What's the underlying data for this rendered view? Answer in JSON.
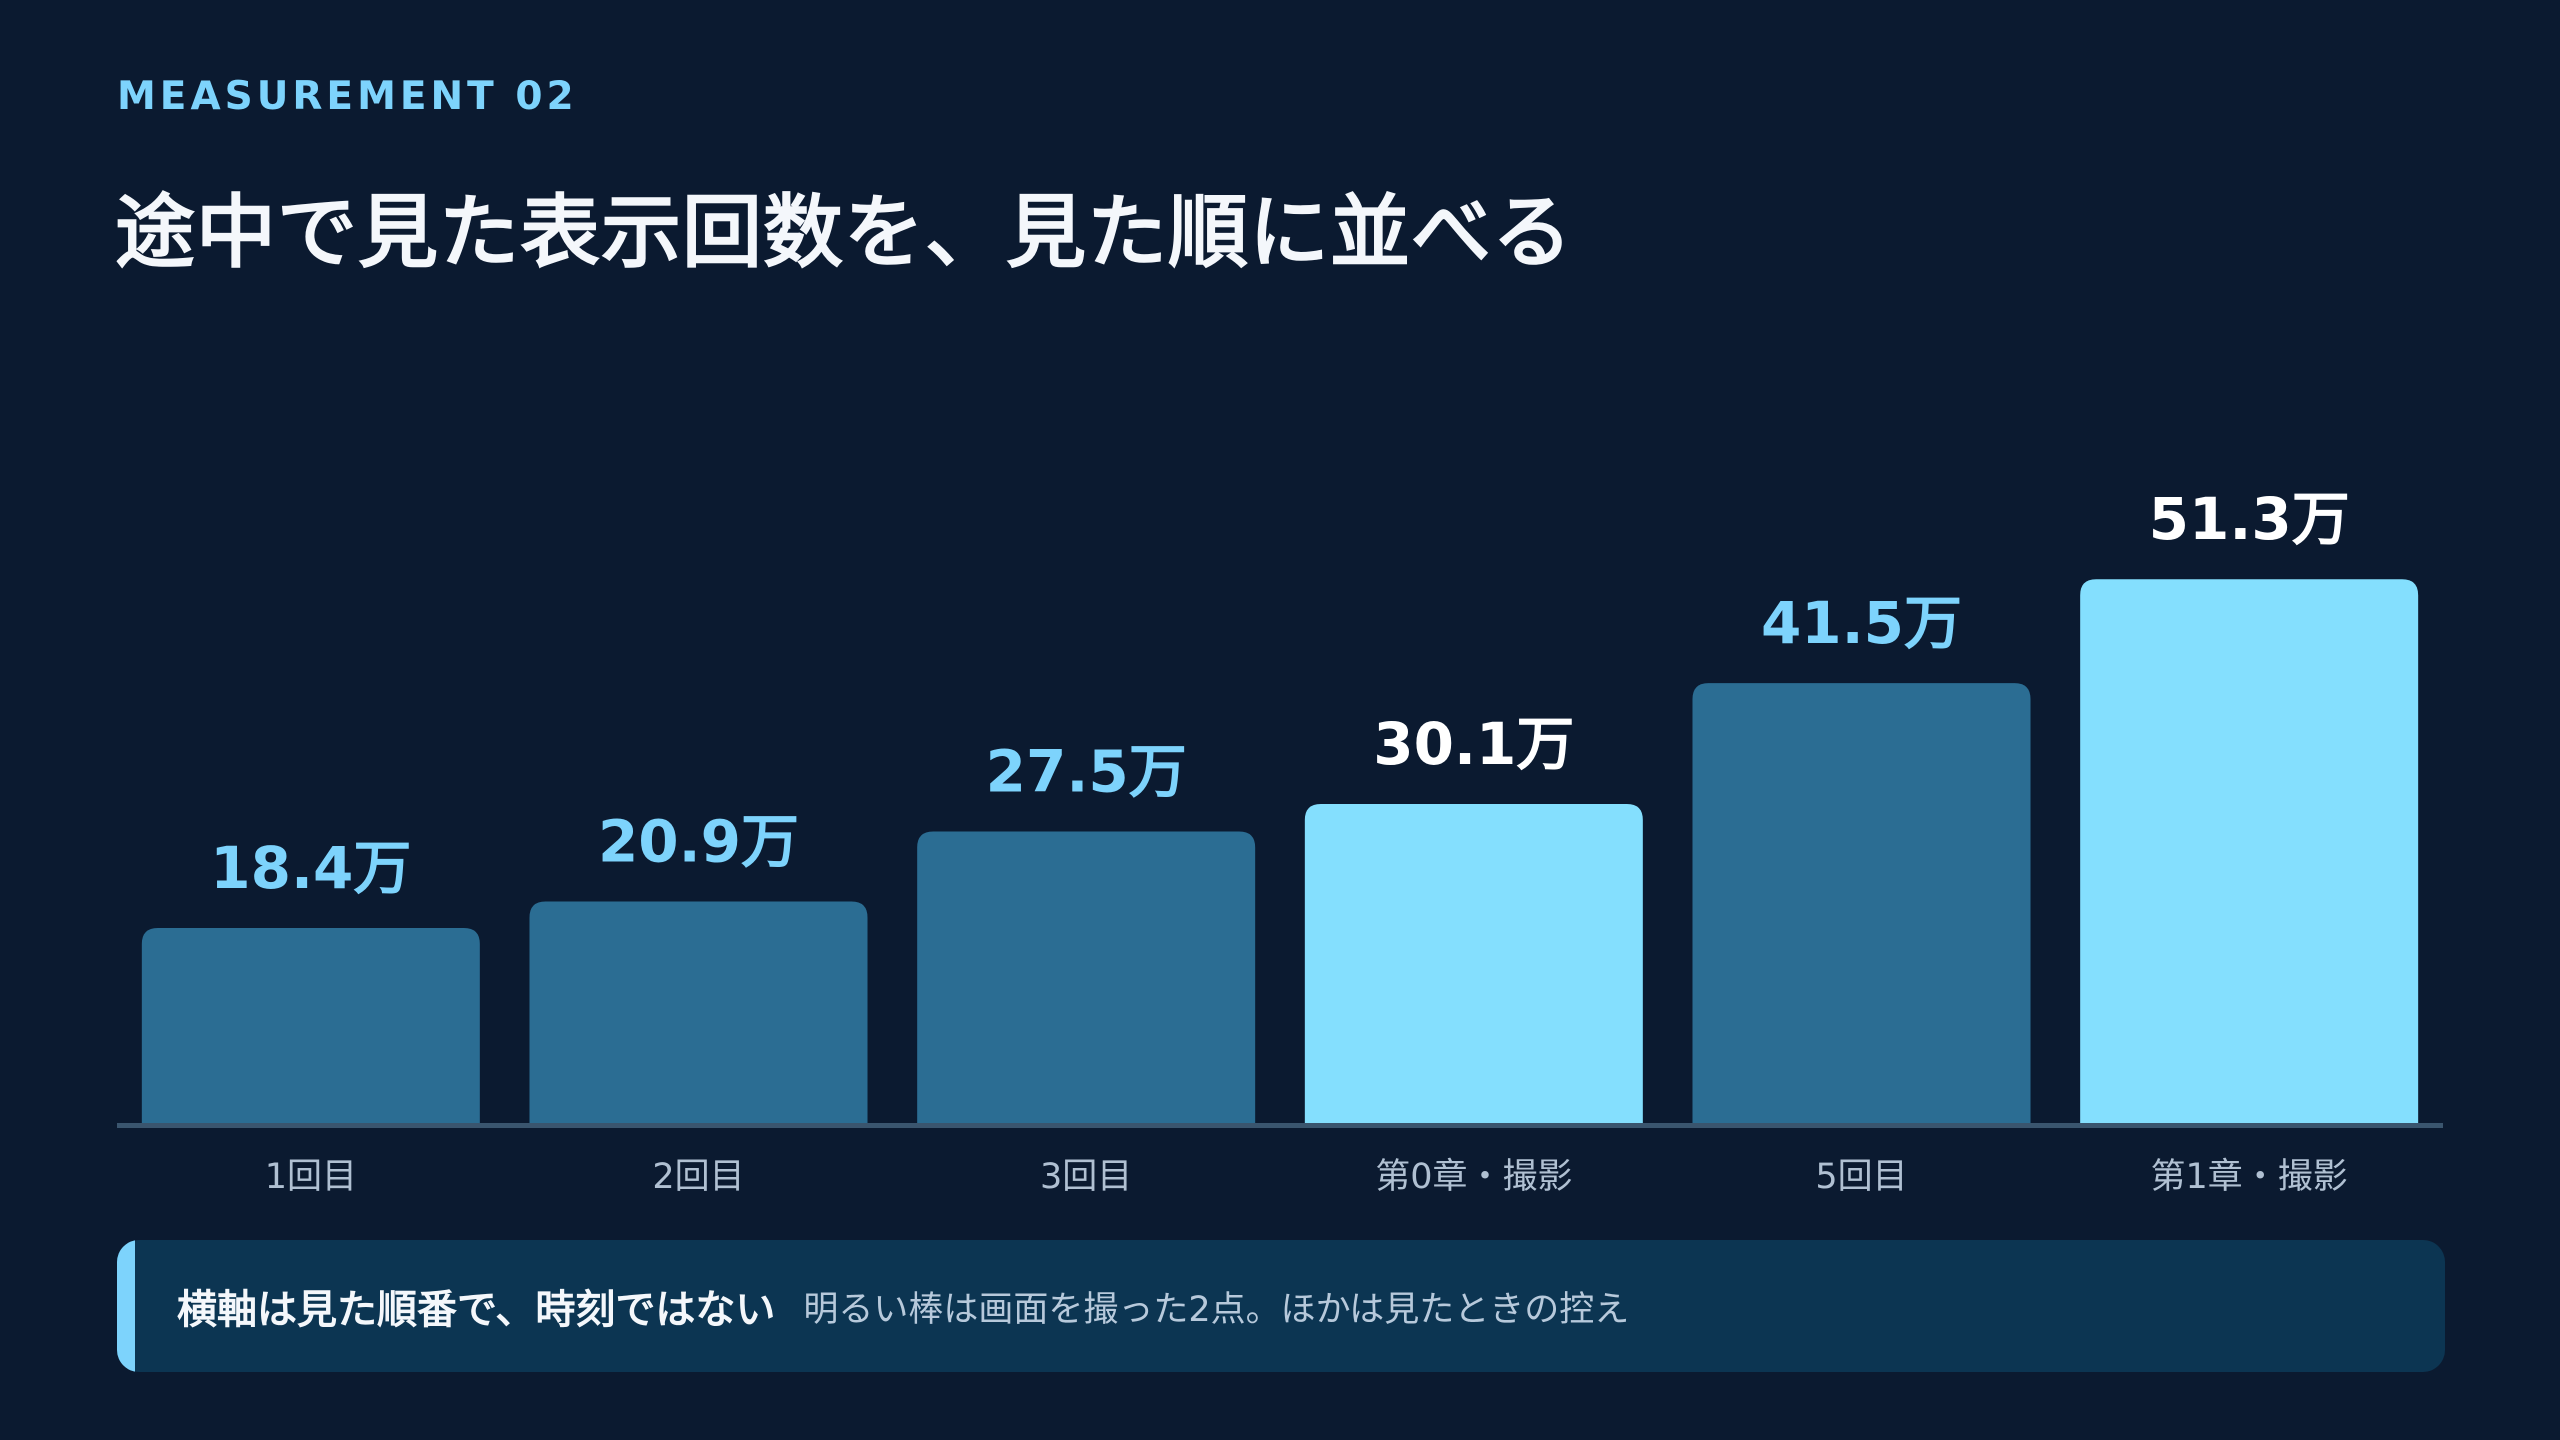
{
  "header": {
    "eyebrow": "MEASUREMENT 02",
    "title": "途中で見た表示回数を、見た順に並べる"
  },
  "colors": {
    "background": "#0b1a30",
    "bar_default": "#2b6d93",
    "bar_highlight": "#84dffe",
    "label_default": "#7dd3fc",
    "label_highlight": "#ffffff",
    "baseline": "#3a556e",
    "category_text": "#b0c0d2",
    "note_background": "#0c3552",
    "note_accent": "#7dd3fc"
  },
  "chart_data": {
    "type": "bar",
    "categories": [
      "1回目",
      "2回目",
      "3回目",
      "第0章・撮影",
      "5回目",
      "第1章・撮影"
    ],
    "values": [
      18.4,
      20.9,
      27.5,
      30.1,
      41.5,
      51.3
    ],
    "value_labels": [
      "18.4万",
      "20.9万",
      "27.5万",
      "30.1万",
      "41.5万",
      "51.3万"
    ],
    "highlight": [
      false,
      false,
      false,
      true,
      false,
      true
    ],
    "ylim": [
      0,
      55
    ]
  },
  "note": {
    "strong": "横軸は見た順番で、時刻ではない",
    "text": "明るい棒は画面を撮った2点。ほかは見たときの控え"
  }
}
